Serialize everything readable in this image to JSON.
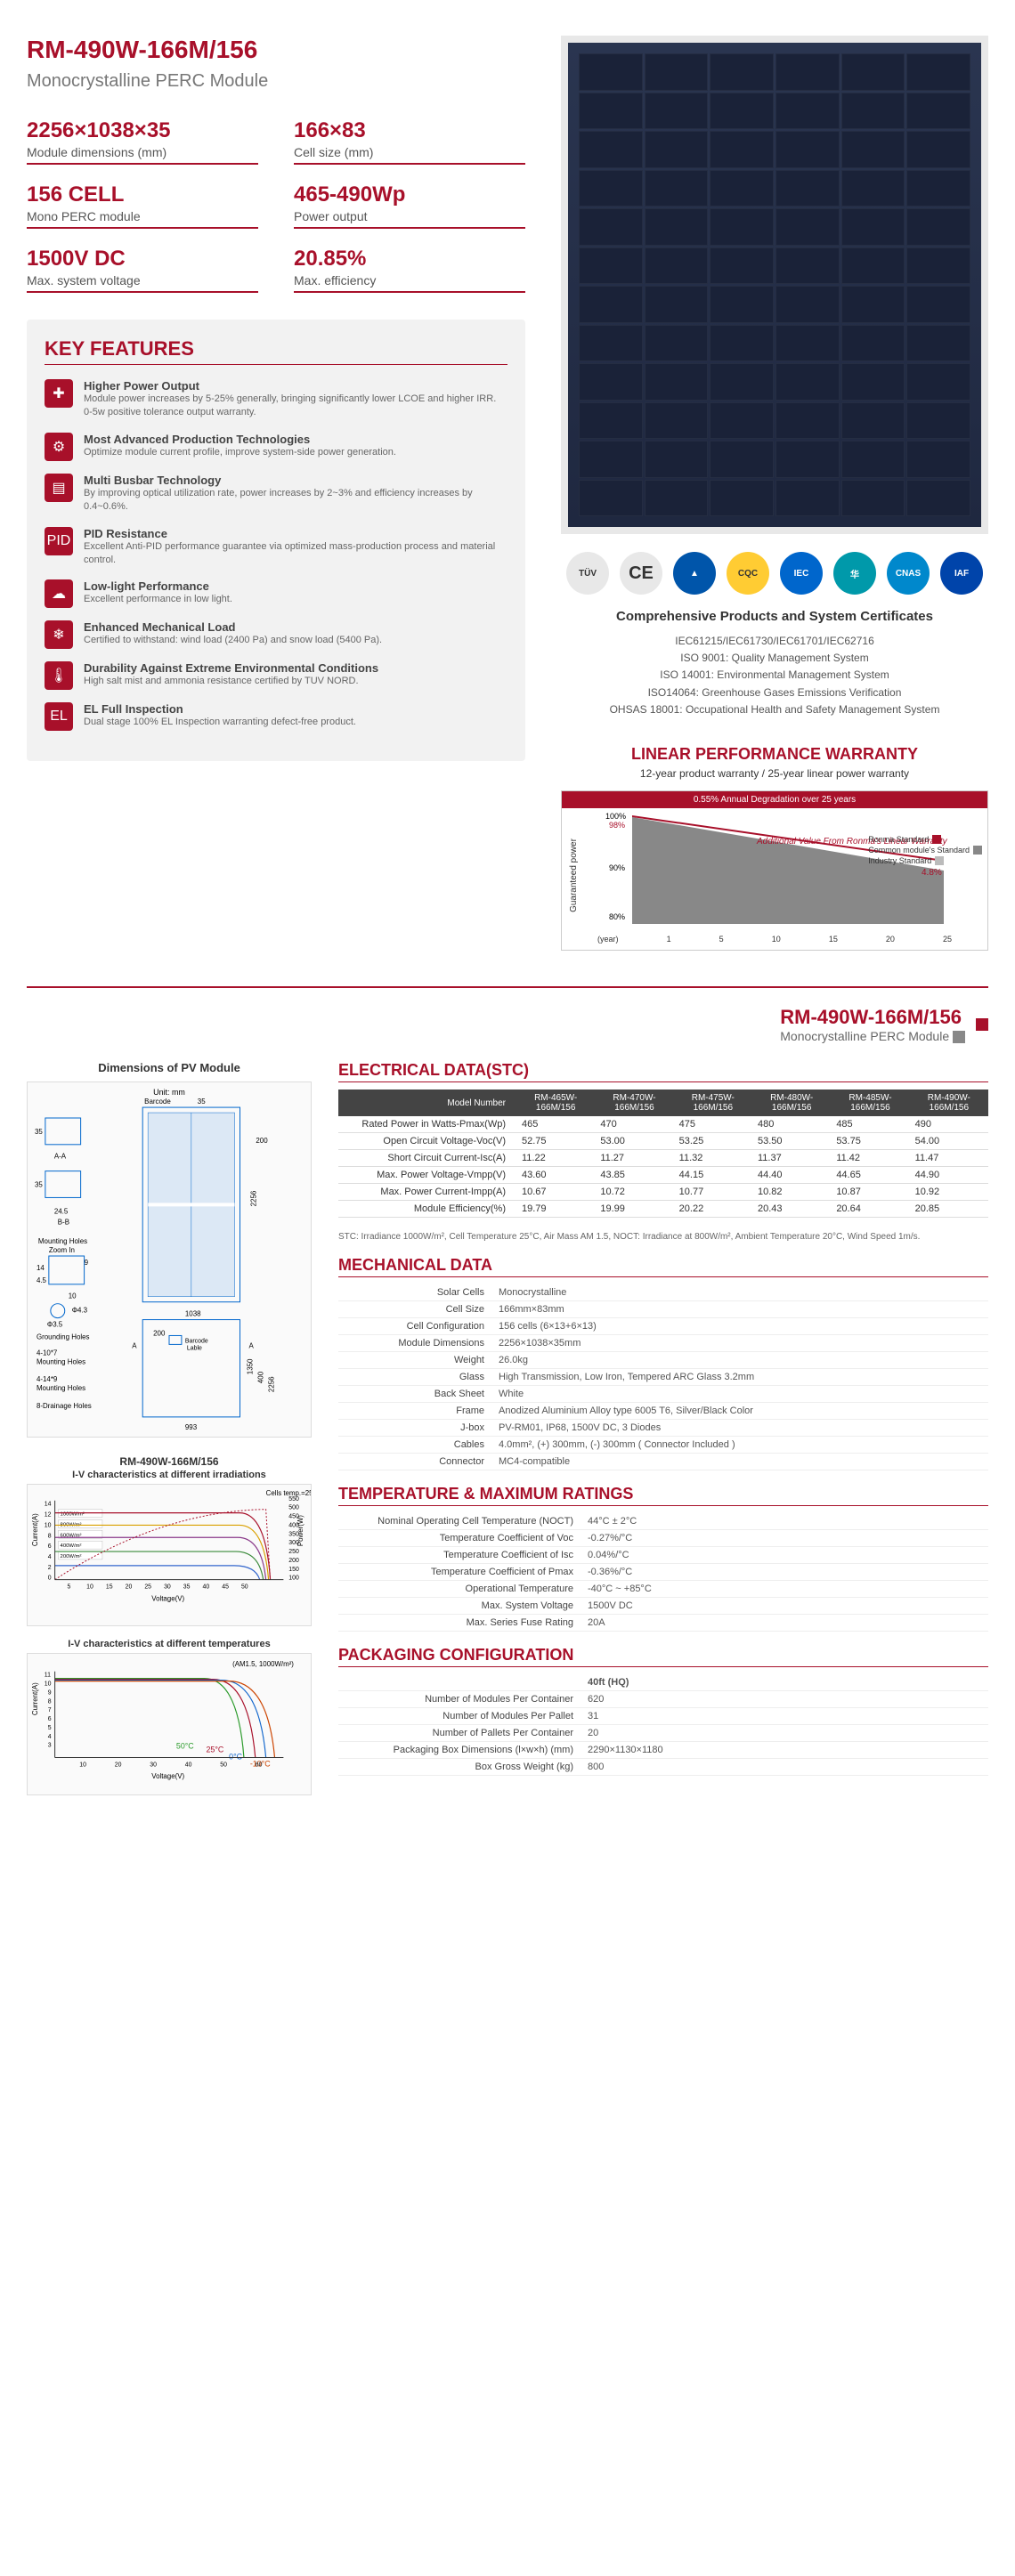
{
  "header": {
    "title": "RM-490W-166M/156",
    "subtitle": "Monocrystalline PERC Module"
  },
  "specs": [
    {
      "value": "2256×1038×35",
      "label": "Module dimensions (mm)"
    },
    {
      "value": "166×83",
      "label": "Cell size (mm)"
    },
    {
      "value": "156 CELL",
      "label": "Mono PERC module"
    },
    {
      "value": "465-490Wp",
      "label": "Power output"
    },
    {
      "value": "1500V DC",
      "label": "Max. system voltage"
    },
    {
      "value": "20.85%",
      "label": "Max. efficiency"
    }
  ],
  "featuresTitle": "KEY FEATURES",
  "features": [
    {
      "icon": "✚",
      "title": "Higher Power Output",
      "desc": "Module power increases by 5-25% generally, bringing significantly lower LCOE and higher IRR. 0-5w positive tolerance output warranty."
    },
    {
      "icon": "⚙",
      "title": "Most Advanced Production Technologies",
      "desc": "Optimize module current profile, improve system-side power generation."
    },
    {
      "icon": "▤",
      "title": "Multi Busbar Technology",
      "desc": "By improving optical utilization rate, power increases by 2~3% and efficiency increases by 0.4~0.6%."
    },
    {
      "icon": "PID",
      "title": "PID Resistance",
      "desc": "Excellent Anti-PID performance guarantee via optimized mass-production process and material control."
    },
    {
      "icon": "☁",
      "title": "Low-light Performance",
      "desc": "Excellent performance in low light."
    },
    {
      "icon": "❄",
      "title": "Enhanced Mechanical Load",
      "desc": "Certified to withstand: wind load (2400 Pa) and snow load (5400 Pa)."
    },
    {
      "icon": "🌡",
      "title": "Durability Against Extreme Environmental Conditions",
      "desc": "High salt mist and ammonia resistance certified by TUV NORD."
    },
    {
      "icon": "EL",
      "title": "EL Full Inspection",
      "desc": "Dual stage 100% EL Inspection warranting defect-free product."
    }
  ],
  "certTitle": "Comprehensive Products and System Certificates",
  "certs": [
    "IEC61215/IEC61730/IEC61701/IEC62716",
    "ISO 9001: Quality Management System",
    "ISO 14001: Environmental Management System",
    "ISO14064: Greenhouse Gases Emissions Verification",
    "OHSAS 18001: Occupational Health and Safety Management System"
  ],
  "warranty": {
    "title": "LINEAR PERFORMANCE WARRANTY",
    "sub": "12-year product warranty / 25-year linear power warranty",
    "banner": "0.55% Annual Degradation over 25 years",
    "addValue": "Additional Value From Ronma's Linear Warranty",
    "yAxis": "Guaranteed power",
    "xLabel": "(year)",
    "yTicks": [
      "100%",
      "98%",
      "90%",
      "80%"
    ],
    "xTicks": [
      "1",
      "5",
      "10",
      "15",
      "20",
      "25"
    ],
    "endValue": "4.8%",
    "legend": [
      "Ronma Standard",
      "Common module's Standard",
      "Industry Standard"
    ]
  },
  "page2": {
    "title": "RM-490W-166M/156",
    "sub": "Monocrystalline PERC Module"
  },
  "dimTitle": "Dimensions of PV Module",
  "ivTitle1": "RM-490W-166M/156",
  "ivSub1": "I-V characteristics at different irradiations",
  "ivSub2": "I-V characteristics at different temperatures",
  "ivNote1": "Cells temp.=25°C",
  "ivNote2": "(AM1.5, 1000W/m²)",
  "electrical": {
    "title": "ELECTRICAL DATA(STC)",
    "headerLabel": "Model Number",
    "models": [
      "RM-465W-166M/156",
      "RM-470W-166M/156",
      "RM-475W-166M/156",
      "RM-480W-166M/156",
      "RM-485W-166M/156",
      "RM-490W-166M/156"
    ],
    "rows": [
      {
        "label": "Rated Power in Watts-Pmax(Wp)",
        "vals": [
          "465",
          "470",
          "475",
          "480",
          "485",
          "490"
        ]
      },
      {
        "label": "Open Circuit Voltage-Voc(V)",
        "vals": [
          "52.75",
          "53.00",
          "53.25",
          "53.50",
          "53.75",
          "54.00"
        ]
      },
      {
        "label": "Short Circuit Current-Isc(A)",
        "vals": [
          "11.22",
          "11.27",
          "11.32",
          "11.37",
          "11.42",
          "11.47"
        ]
      },
      {
        "label": "Max. Power Voltage-Vmpp(V)",
        "vals": [
          "43.60",
          "43.85",
          "44.15",
          "44.40",
          "44.65",
          "44.90"
        ]
      },
      {
        "label": "Max. Power Current-Impp(A)",
        "vals": [
          "10.67",
          "10.72",
          "10.77",
          "10.82",
          "10.87",
          "10.92"
        ]
      },
      {
        "label": "Module Efficiency(%)",
        "vals": [
          "19.79",
          "19.99",
          "20.22",
          "20.43",
          "20.64",
          "20.85"
        ]
      }
    ],
    "note": "STC: Irradiance 1000W/m², Cell Temperature 25°C, Air Mass AM 1.5, NOCT: Irradiance at 800W/m², Ambient Temperature 20°C, Wind Speed 1m/s."
  },
  "mechanical": {
    "title": "MECHANICAL DATA",
    "rows": [
      {
        "label": "Solar Cells",
        "val": "Monocrystalline"
      },
      {
        "label": "Cell Size",
        "val": "166mm×83mm"
      },
      {
        "label": "Cell Configuration",
        "val": "156 cells (6×13+6×13)"
      },
      {
        "label": "Module Dimensions",
        "val": "2256×1038×35mm"
      },
      {
        "label": "Weight",
        "val": "26.0kg"
      },
      {
        "label": "Glass",
        "val": "High Transmission, Low Iron, Tempered ARC Glass 3.2mm"
      },
      {
        "label": "Back Sheet",
        "val": "White"
      },
      {
        "label": "Frame",
        "val": "Anodized Aluminium Alloy type 6005 T6, Silver/Black Color"
      },
      {
        "label": "J-box",
        "val": "PV-RM01, IP68, 1500V DC, 3 Diodes"
      },
      {
        "label": "Cables",
        "val": "4.0mm², (+) 300mm,  (-) 300mm ( Connector Included )"
      },
      {
        "label": "Connector",
        "val": "MC4-compatible"
      }
    ]
  },
  "temp": {
    "title": "TEMPERATURE & MAXIMUM RATINGS",
    "rows": [
      {
        "label": "Nominal Operating Cell Temperature (NOCT)",
        "val": "44°C ± 2°C"
      },
      {
        "label": "Temperature Coefficient of Voc",
        "val": "-0.27%/°C"
      },
      {
        "label": "Temperature Coefficient of Isc",
        "val": "0.04%/°C"
      },
      {
        "label": "Temperature Coefficient of Pmax",
        "val": "-0.36%/°C"
      },
      {
        "label": "Operational Temperature",
        "val": "-40°C ~ +85°C"
      },
      {
        "label": "Max. System Voltage",
        "val": "1500V DC"
      },
      {
        "label": "Max. Series Fuse Rating",
        "val": "20A"
      }
    ]
  },
  "pack": {
    "title": "PACKAGING CONFIGURATION",
    "hdr": "40ft (HQ)",
    "rows": [
      {
        "label": "Number of Modules Per Container",
        "val": "620"
      },
      {
        "label": "Number of Modules Per Pallet",
        "val": "31"
      },
      {
        "label": "Number of Pallets Per Container",
        "val": "20"
      },
      {
        "label": "Packaging Box Dimensions (l×w×h) (mm)",
        "val": "2290×1130×1180"
      },
      {
        "label": "Box Gross Weight (kg)",
        "val": "800"
      }
    ]
  }
}
